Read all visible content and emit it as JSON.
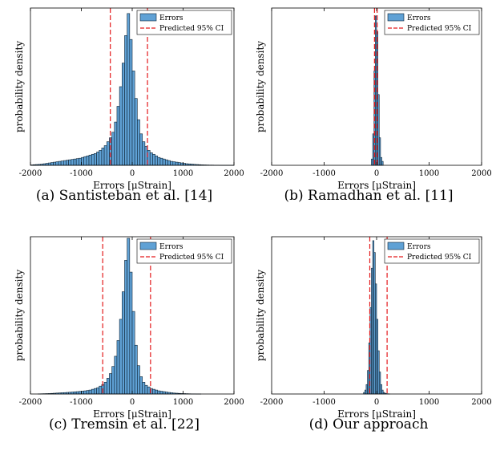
{
  "chart_data": [
    {
      "type": "bar",
      "caption": "(a) Santisteban et al. [14]",
      "xlabel": "Errors [μStrain]",
      "ylabel": "probability density",
      "xlim": [
        -2000,
        2000
      ],
      "xticks": [
        -2000,
        -1000,
        0,
        1000,
        2000
      ],
      "grid": false,
      "legend": {
        "placement": "top-right",
        "entries": [
          "Errors",
          "Predicted 95% CI"
        ]
      },
      "ci": [
        -430,
        300
      ],
      "ymax": 2.0,
      "bin_width": 50,
      "bins_start": -2000,
      "density": [
        0.005,
        0.008,
        0.01,
        0.012,
        0.015,
        0.02,
        0.025,
        0.03,
        0.035,
        0.04,
        0.045,
        0.05,
        0.055,
        0.06,
        0.065,
        0.07,
        0.075,
        0.08,
        0.085,
        0.09,
        0.1,
        0.11,
        0.12,
        0.13,
        0.14,
        0.15,
        0.17,
        0.19,
        0.22,
        0.25,
        0.3,
        0.35,
        0.42,
        0.55,
        0.75,
        1.0,
        1.3,
        1.65,
        1.93,
        1.6,
        1.2,
        0.85,
        0.58,
        0.4,
        0.3,
        0.24,
        0.19,
        0.16,
        0.14,
        0.12,
        0.1,
        0.09,
        0.08,
        0.07,
        0.06,
        0.05,
        0.045,
        0.04,
        0.035,
        0.03,
        0.025,
        0.02,
        0.018,
        0.015,
        0.012,
        0.01,
        0.008,
        0.006,
        0.005,
        0.004,
        0.003,
        0.003,
        0.002,
        0.002,
        0.001,
        0.001,
        0.001,
        0.001,
        0.001,
        0.001
      ]
    },
    {
      "type": "bar",
      "caption": "(b) Ramadhan et al. [11]",
      "xlabel": "Errors [μStrain]",
      "ylabel": "probability density",
      "xlim": [
        -2000,
        2000
      ],
      "xticks": [
        -2000,
        -1000,
        0,
        1000,
        2000
      ],
      "grid": false,
      "legend": {
        "placement": "top-right",
        "entries": [
          "Errors",
          "Predicted 95% CI"
        ]
      },
      "ci": [
        -40,
        10
      ],
      "ymax": 2.0,
      "bin_width": 25,
      "bins_start": -100,
      "density": [
        0.08,
        0.4,
        1.2,
        1.9,
        1.7,
        0.9,
        0.35,
        0.1,
        0.05
      ]
    },
    {
      "type": "bar",
      "caption": "(c) Tremsin et al. [22]",
      "xlabel": "Errors [μStrain]",
      "ylabel": "probability density",
      "xlim": [
        -2000,
        2000
      ],
      "xticks": [
        -2000,
        -1000,
        0,
        1000,
        2000
      ],
      "grid": false,
      "legend": {
        "placement": "top-right",
        "entries": [
          "Errors",
          "Predicted 95% CI"
        ]
      },
      "ci": [
        -580,
        360
      ],
      "ymax": 2.0,
      "bin_width": 50,
      "bins_start": -2000,
      "density": [
        0.0,
        0.0,
        0.0,
        0.002,
        0.003,
        0.004,
        0.005,
        0.006,
        0.008,
        0.01,
        0.012,
        0.014,
        0.016,
        0.018,
        0.02,
        0.022,
        0.025,
        0.028,
        0.03,
        0.033,
        0.036,
        0.04,
        0.045,
        0.05,
        0.06,
        0.07,
        0.08,
        0.1,
        0.12,
        0.15,
        0.2,
        0.26,
        0.35,
        0.48,
        0.68,
        0.95,
        1.3,
        1.7,
        1.98,
        1.55,
        1.05,
        0.62,
        0.36,
        0.22,
        0.15,
        0.11,
        0.09,
        0.07,
        0.06,
        0.05,
        0.04,
        0.035,
        0.03,
        0.025,
        0.02,
        0.016,
        0.012,
        0.01,
        0.008,
        0.006,
        0.005,
        0.004,
        0.003,
        0.002,
        0.002,
        0.001,
        0.001,
        0.0,
        0.0,
        0.0,
        0.0,
        0.0,
        0.0,
        0.0,
        0.0,
        0.0,
        0.0,
        0.0,
        0.0,
        0.0
      ]
    },
    {
      "type": "bar",
      "caption": "(d) Our approach",
      "xlabel": "Errors [μStrain]",
      "ylabel": "probability density",
      "xlim": [
        -2000,
        2000
      ],
      "xticks": [
        -2000,
        -1000,
        0,
        1000,
        2000
      ],
      "grid": false,
      "legend": {
        "placement": "top-right",
        "entries": [
          "Errors",
          "Predicted 95% CI"
        ]
      },
      "ci": [
        -130,
        200
      ],
      "ymax": 2.0,
      "bin_width": 25,
      "bins_start": -250,
      "density": [
        0.02,
        0.05,
        0.12,
        0.3,
        0.65,
        1.1,
        1.6,
        1.95,
        1.8,
        1.4,
        0.95,
        0.55,
        0.28,
        0.12,
        0.05,
        0.02,
        0.01,
        0.005,
        0.003,
        0.002
      ]
    }
  ]
}
